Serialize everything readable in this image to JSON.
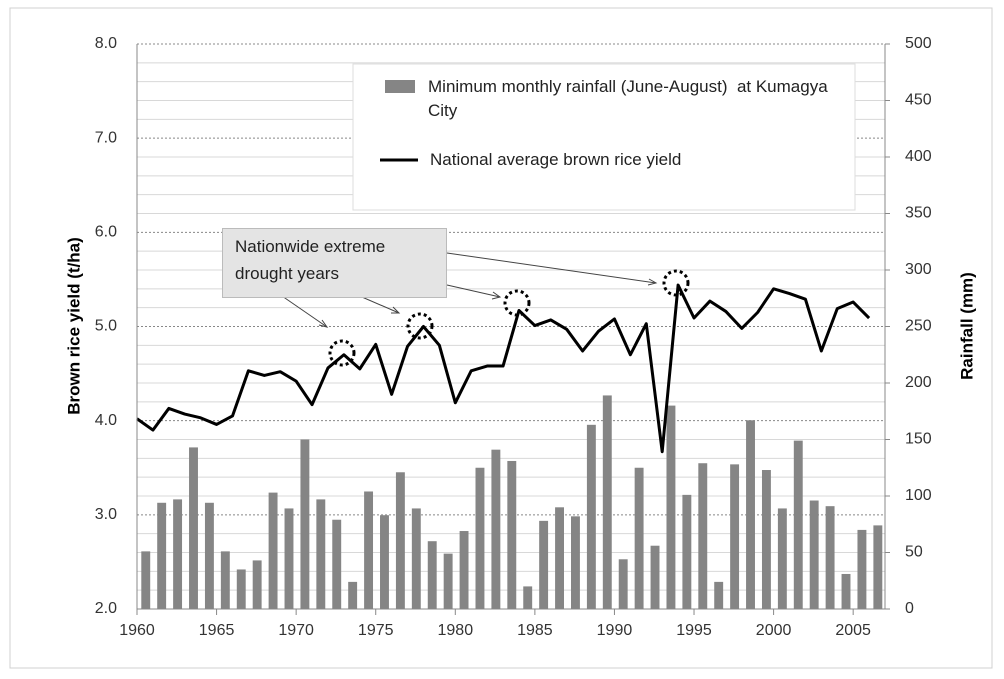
{
  "chart_data": {
    "type": "combo",
    "x": [
      1960,
      1961,
      1962,
      1963,
      1964,
      1965,
      1966,
      1967,
      1968,
      1969,
      1970,
      1971,
      1972,
      1973,
      1974,
      1975,
      1976,
      1977,
      1978,
      1979,
      1980,
      1981,
      1982,
      1983,
      1984,
      1985,
      1986,
      1987,
      1988,
      1989,
      1990,
      1991,
      1992,
      1993,
      1994,
      1995,
      1996,
      1997,
      1998,
      1999,
      2000,
      2001,
      2002,
      2003,
      2004,
      2005,
      2006
    ],
    "series": [
      {
        "name": "Minimum monthly rainfall (June-August)  at Kumagya City",
        "type": "bar",
        "axis": "y2",
        "color": "#858585",
        "values": [
          51,
          94,
          97,
          143,
          94,
          51,
          35,
          43,
          103,
          89,
          150,
          97,
          79,
          24,
          104,
          83,
          121,
          89,
          60,
          49,
          69,
          125,
          141,
          131,
          20,
          78,
          90,
          82,
          163,
          189,
          44,
          125,
          56,
          180,
          101,
          129,
          24,
          128,
          167,
          123,
          89,
          149,
          96,
          91,
          31,
          70,
          74
        ]
      },
      {
        "name": "National average brown rice yield",
        "type": "line",
        "color": "#000000",
        "values": [
          4.02,
          3.9,
          4.13,
          4.07,
          4.03,
          3.96,
          4.05,
          4.53,
          4.48,
          4.52,
          4.42,
          4.17,
          4.56,
          4.7,
          4.55,
          4.81,
          4.28,
          4.79,
          5.0,
          4.8,
          4.19,
          4.53,
          4.58,
          4.58,
          5.17,
          5.01,
          5.07,
          4.97,
          4.74,
          4.95,
          5.08,
          4.7,
          5.03,
          3.67,
          5.44,
          5.09,
          5.27,
          5.16,
          4.98,
          5.15,
          5.4,
          5.35,
          5.29,
          4.74,
          5.19,
          5.26,
          5.09
        ]
      }
    ],
    "y_label": "Brown rice yield (t/ha)",
    "y2_label": "Rainfall (mm)",
    "annotation": "Nationwide extreme drought years",
    "xlim": [
      1960,
      2007
    ],
    "xticks": [
      1960,
      1965,
      1970,
      1975,
      1980,
      1985,
      1990,
      1995,
      2000,
      2005
    ],
    "ylim": [
      2,
      8
    ],
    "yticks": [
      {
        "value": 2,
        "label": "2.0"
      },
      {
        "value": 3,
        "label": "3.0"
      },
      {
        "value": 4,
        "label": "4.0"
      },
      {
        "value": 5,
        "label": "5.0"
      },
      {
        "value": 6,
        "label": "6.0"
      },
      {
        "value": 7,
        "label": "7.0"
      },
      {
        "value": 8,
        "label": "8.0"
      }
    ],
    "y2lim": [
      0,
      500
    ],
    "y2ticks": [
      0,
      50,
      100,
      150,
      200,
      250,
      300,
      350,
      400,
      450,
      500
    ],
    "grid": true
  }
}
